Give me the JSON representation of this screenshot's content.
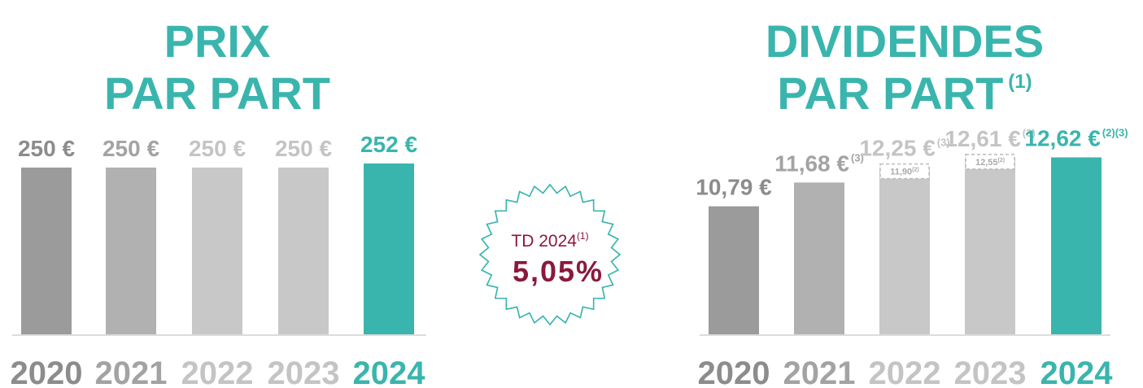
{
  "chart_data": [
    {
      "type": "bar",
      "title": [
        "PRIX",
        "PAR PART"
      ],
      "categories": [
        "2020",
        "2021",
        "2022",
        "2023",
        "2024"
      ],
      "values": [
        250,
        250,
        250,
        250,
        252
      ],
      "value_labels": [
        "250 €",
        "250 €",
        "250 €",
        "250 €",
        "252 €"
      ],
      "colors": [
        "#9b9b9b",
        "#b1b1b1",
        "#c8c8c8",
        "#c8c8c8",
        "#3ab5ad"
      ],
      "label_colors": [
        "#8c8c8c",
        "#a3a3a3",
        "#c4c4c4",
        "#c4c4c4",
        "#3ab5ad"
      ],
      "ylim": [
        168,
        260
      ]
    },
    {
      "type": "bar",
      "title": [
        "DIVIDENDES",
        "PAR PART"
      ],
      "title_note": "(1)",
      "categories": [
        "2020",
        "2021",
        "2022",
        "2023",
        "2024"
      ],
      "values": [
        10.79,
        11.68,
        12.25,
        12.61,
        12.62
      ],
      "value_labels": [
        "10,79 €",
        "11,68 €",
        "12,25 €",
        "12,61 €",
        "12,62 €"
      ],
      "value_notes": [
        null,
        "(3)",
        "(3)",
        "(3)",
        "(2)(3)"
      ],
      "inner_values": [
        null,
        null,
        11.9,
        12.55,
        null
      ],
      "inner_labels": [
        null,
        null,
        "11,90",
        "12,55",
        null
      ],
      "inner_notes": [
        null,
        null,
        "(2)",
        "(2)",
        null
      ],
      "colors": [
        "#9b9b9b",
        "#b1b1b1",
        "#c8c8c8",
        "#c8c8c8",
        "#3ab5ad"
      ],
      "label_colors": [
        "#8c8c8c",
        "#a3a3a3",
        "#c4c4c4",
        "#c4c4c4",
        "#3ab5ad"
      ],
      "ylim": [
        6,
        13
      ]
    }
  ],
  "badge": {
    "label": "TD 2024",
    "note": "(1)",
    "value": "5,05%"
  }
}
